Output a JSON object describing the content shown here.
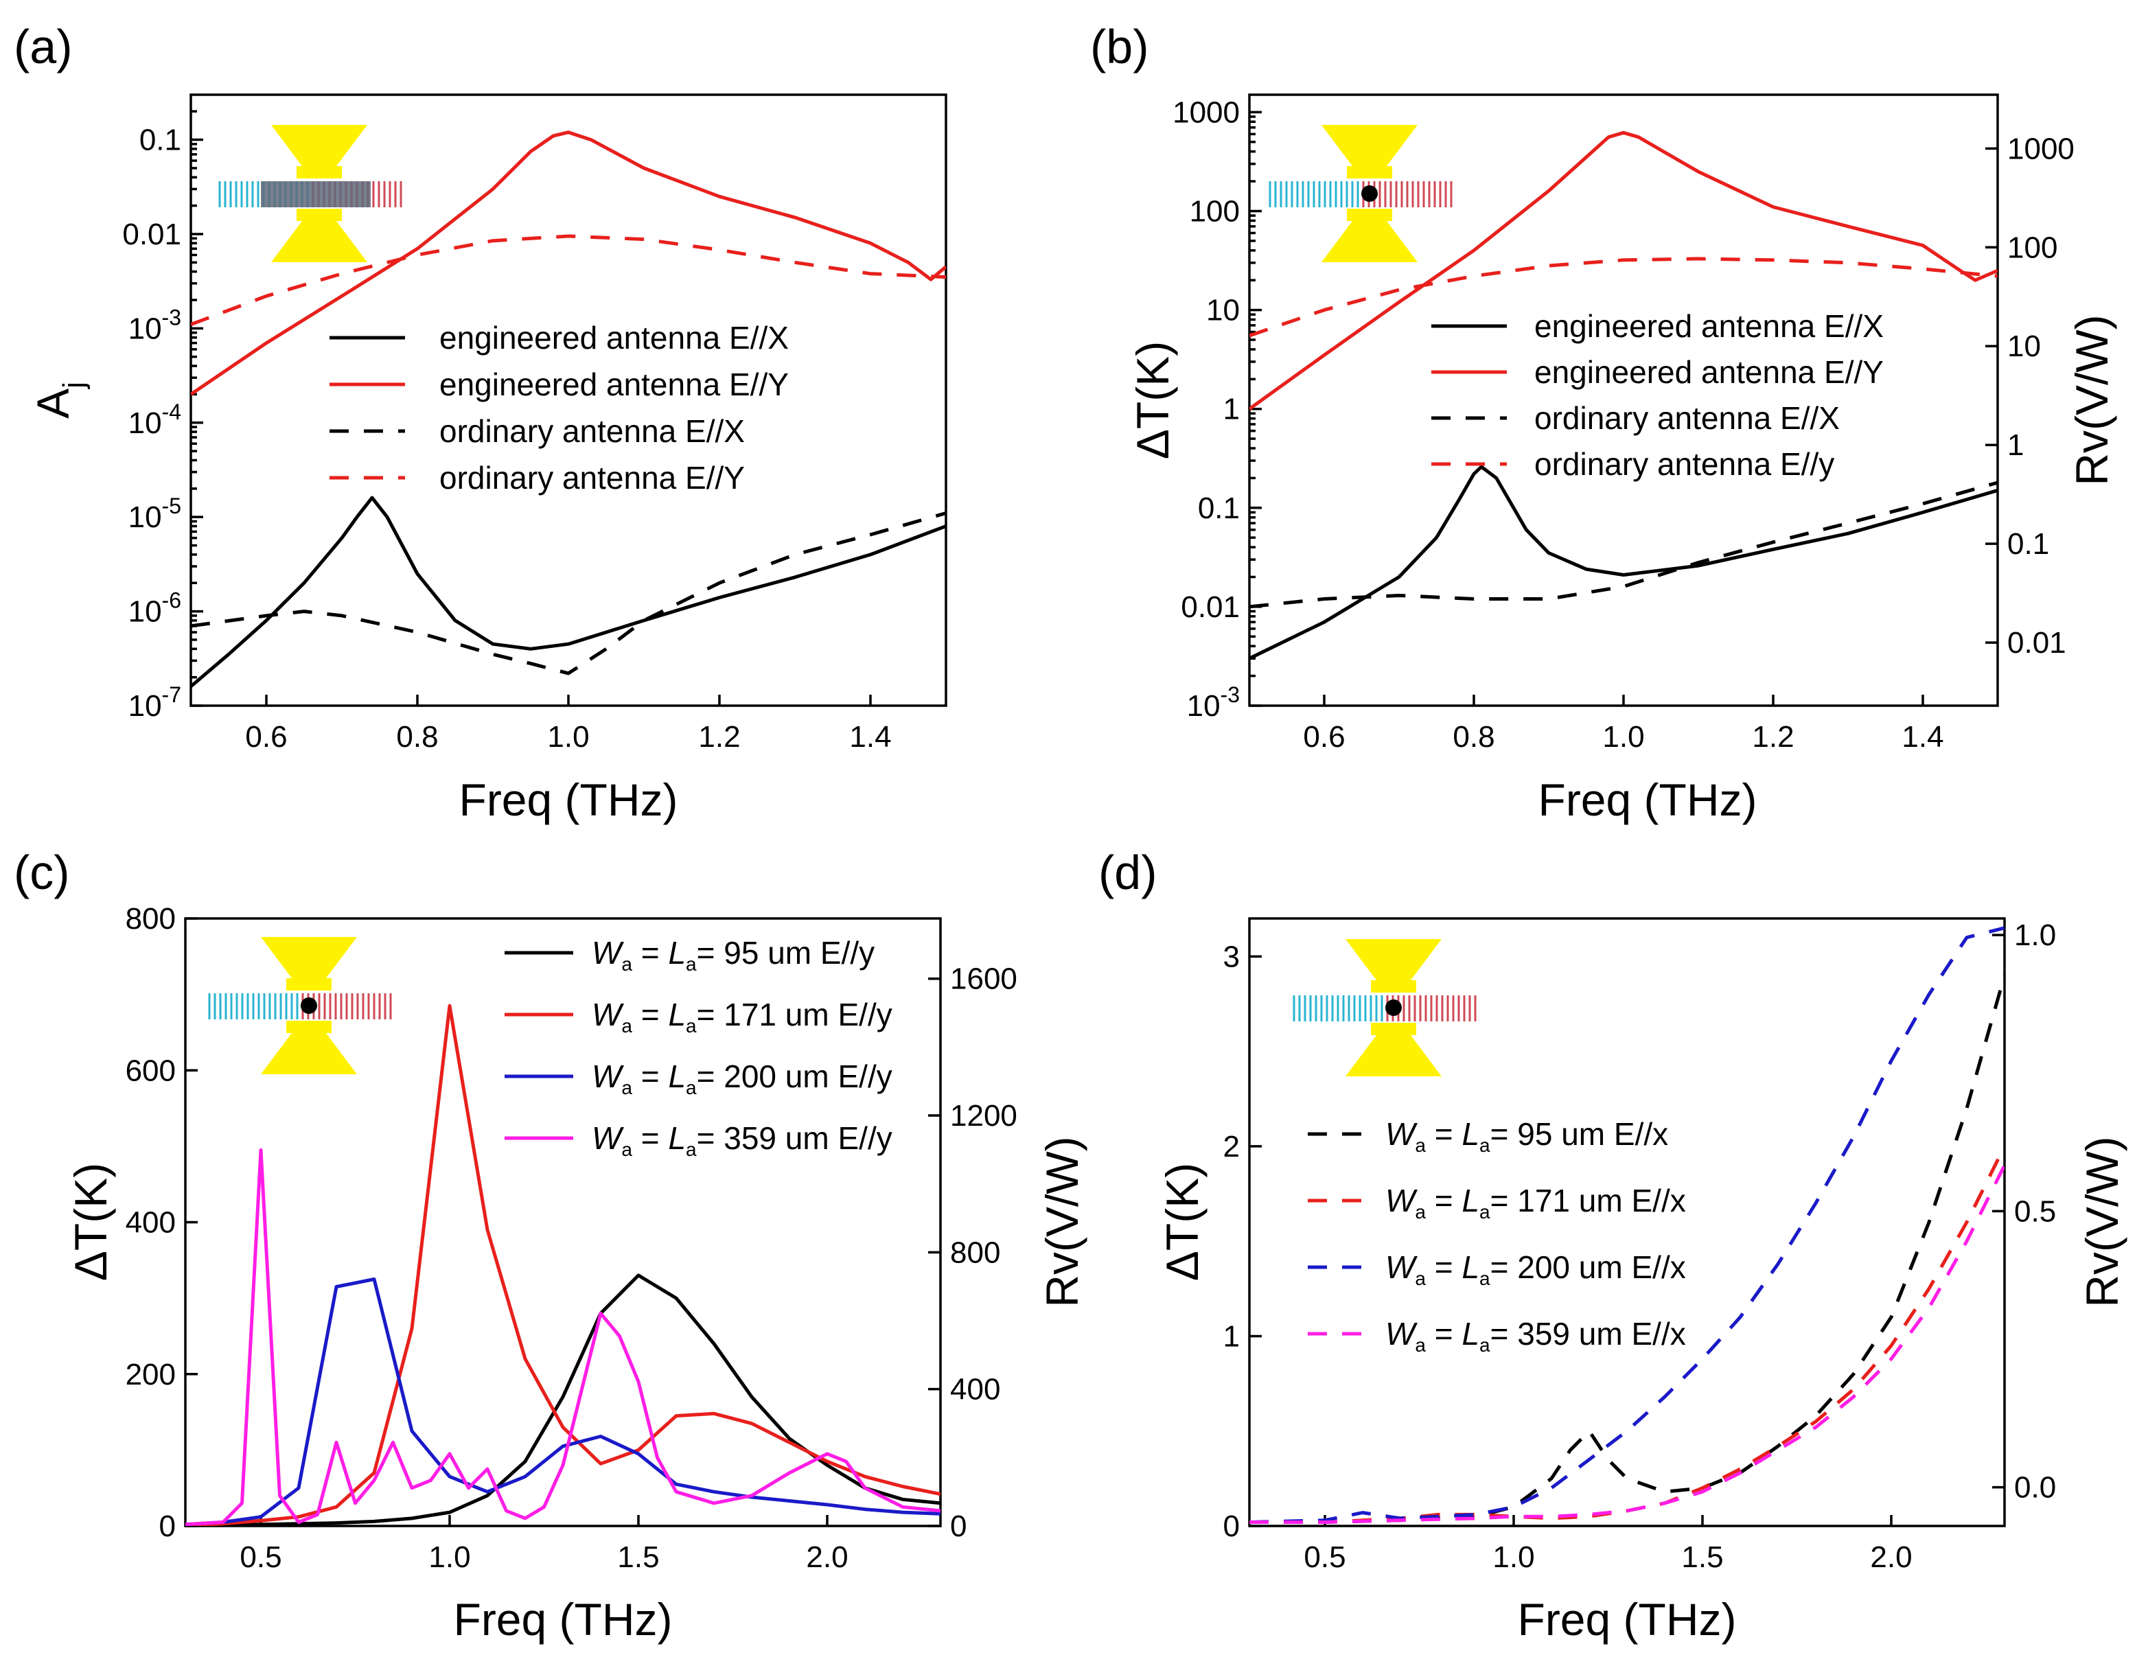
{
  "chart_data": [
    {
      "panel": "(a)",
      "type": "line",
      "yscale": "log",
      "xlabel": "Freq (THz)",
      "ylabel": "A",
      "ylabel_sub": "j",
      "xlim": [
        0.5,
        1.5
      ],
      "ylim": [
        1e-07,
        0.3
      ],
      "xticks": [
        0.6,
        0.8,
        1.0,
        1.2,
        1.4
      ],
      "xtick_labels": [
        "0.6",
        "0.8",
        "1.0",
        "1.2",
        "1.4"
      ],
      "yticks": [
        {
          "v": 0.1,
          "base": "0.1",
          "exp": ""
        },
        {
          "v": 0.01,
          "base": "0.01",
          "exp": ""
        },
        {
          "v": 0.001,
          "base": "10",
          "exp": "-3"
        },
        {
          "v": 0.0001,
          "base": "10",
          "exp": "-4"
        },
        {
          "v": 1e-05,
          "base": "10",
          "exp": "-5"
        },
        {
          "v": 1e-06,
          "base": "10",
          "exp": "-6"
        },
        {
          "v": 1e-07,
          "base": "10",
          "exp": "-7"
        }
      ],
      "legend_position": "center-right",
      "inset": "dot",
      "series": [
        {
          "name": "engineered antenna E//X",
          "color": "#000000",
          "dash": "solid",
          "x": [
            0.5,
            0.55,
            0.6,
            0.65,
            0.7,
            0.72,
            0.74,
            0.76,
            0.8,
            0.85,
            0.9,
            0.95,
            1.0,
            1.1,
            1.2,
            1.3,
            1.4,
            1.5
          ],
          "y": [
            1.6e-07,
            3.5e-07,
            8e-07,
            2e-06,
            6e-06,
            1e-05,
            1.6e-05,
            1e-05,
            2.5e-06,
            8e-07,
            4.5e-07,
            4e-07,
            4.5e-07,
            8e-07,
            1.4e-06,
            2.3e-06,
            4e-06,
            8e-06
          ]
        },
        {
          "name": "engineered antenna E//Y",
          "color": "#e8201c",
          "dash": "solid",
          "x": [
            0.5,
            0.6,
            0.7,
            0.8,
            0.9,
            0.95,
            0.98,
            1.0,
            1.03,
            1.1,
            1.2,
            1.3,
            1.4,
            1.45,
            1.48,
            1.5
          ],
          "y": [
            0.0002,
            0.0007,
            0.0022,
            0.007,
            0.03,
            0.075,
            0.11,
            0.12,
            0.1,
            0.05,
            0.025,
            0.015,
            0.008,
            0.005,
            0.0033,
            0.0045
          ]
        },
        {
          "name": "ordinary antenna E//X",
          "color": "#000000",
          "dash": "dash",
          "x": [
            0.5,
            0.6,
            0.65,
            0.7,
            0.8,
            0.9,
            0.95,
            1.0,
            1.05,
            1.1,
            1.2,
            1.3,
            1.4,
            1.5
          ],
          "y": [
            7e-07,
            9e-07,
            1e-06,
            9e-07,
            6e-07,
            3.5e-07,
            2.8e-07,
            2.2e-07,
            4e-07,
            8e-07,
            2e-06,
            4e-06,
            6.5e-06,
            1.1e-05
          ]
        },
        {
          "name": "ordinary antenna E//Y",
          "color": "#e8201c",
          "dash": "dash",
          "x": [
            0.5,
            0.6,
            0.7,
            0.8,
            0.9,
            1.0,
            1.1,
            1.2,
            1.3,
            1.4,
            1.5
          ],
          "y": [
            0.0011,
            0.0022,
            0.0038,
            0.006,
            0.0085,
            0.0095,
            0.0088,
            0.0068,
            0.005,
            0.0038,
            0.0035
          ]
        }
      ]
    },
    {
      "panel": "(b)",
      "type": "line",
      "yscale": "log",
      "xlabel": "Freq (THz)",
      "ylabel": "ΔT(K)",
      "ylabel_right": "Rv(V/W)",
      "xlim": [
        0.5,
        1.5
      ],
      "ylim": [
        0.001,
        1500
      ],
      "xticks": [
        0.6,
        0.8,
        1.0,
        1.2,
        1.4
      ],
      "xtick_labels": [
        "0.6",
        "0.8",
        "1.0",
        "1.2",
        "1.4"
      ],
      "yticks": [
        {
          "v": 1000,
          "base": "1000",
          "exp": ""
        },
        {
          "v": 100,
          "base": "100",
          "exp": ""
        },
        {
          "v": 10,
          "base": "10",
          "exp": ""
        },
        {
          "v": 1,
          "base": "1",
          "exp": ""
        },
        {
          "v": 0.1,
          "base": "0.1",
          "exp": ""
        },
        {
          "v": 0.01,
          "base": "0.01",
          "exp": ""
        },
        {
          "v": 0.001,
          "base": "10",
          "exp": "-3"
        }
      ],
      "right_yticks": [
        {
          "v": 1000,
          "label": "1000"
        },
        {
          "v": 100,
          "label": "100"
        },
        {
          "v": 10,
          "label": "10"
        },
        {
          "v": 1,
          "label": "1"
        },
        {
          "v": 0.1,
          "label": "0.1"
        },
        {
          "v": 0.01,
          "label": "0.01"
        }
      ],
      "right_ylim": [
        0.0023,
        3500
      ],
      "legend_position": "center-right",
      "inset": "dot",
      "series": [
        {
          "name": "engineered antenna E//X",
          "color": "#000000",
          "dash": "solid",
          "x": [
            0.5,
            0.6,
            0.7,
            0.75,
            0.78,
            0.8,
            0.81,
            0.83,
            0.87,
            0.9,
            0.95,
            1.0,
            1.1,
            1.2,
            1.3,
            1.4,
            1.5
          ],
          "y": [
            0.003,
            0.007,
            0.02,
            0.05,
            0.12,
            0.22,
            0.26,
            0.2,
            0.06,
            0.035,
            0.024,
            0.021,
            0.026,
            0.038,
            0.055,
            0.09,
            0.15
          ]
        },
        {
          "name": "engineered antenna E//Y",
          "color": "#e8201c",
          "dash": "solid",
          "x": [
            0.5,
            0.6,
            0.7,
            0.8,
            0.9,
            0.95,
            0.98,
            1.0,
            1.02,
            1.1,
            1.2,
            1.3,
            1.4,
            1.45,
            1.47,
            1.5
          ],
          "y": [
            1,
            3.5,
            12,
            40,
            160,
            350,
            560,
            620,
            560,
            250,
            110,
            70,
            45,
            25,
            20,
            25
          ]
        },
        {
          "name": "ordinary antenna E//X",
          "color": "#000000",
          "dash": "dash",
          "x": [
            0.5,
            0.6,
            0.7,
            0.8,
            0.9,
            1.0,
            1.1,
            1.2,
            1.3,
            1.4,
            1.5
          ],
          "y": [
            0.01,
            0.012,
            0.013,
            0.012,
            0.012,
            0.016,
            0.028,
            0.045,
            0.07,
            0.11,
            0.18
          ]
        },
        {
          "name": "ordinary antenna E//y",
          "color": "#e8201c",
          "dash": "dash",
          "x": [
            0.5,
            0.6,
            0.7,
            0.8,
            0.9,
            1.0,
            1.1,
            1.2,
            1.3,
            1.4,
            1.5
          ],
          "y": [
            5.5,
            10,
            16,
            22,
            28,
            32,
            33,
            32,
            30,
            26,
            22
          ]
        }
      ]
    },
    {
      "panel": "(c)",
      "type": "line",
      "yscale": "linear",
      "xlabel": "Freq (THz)",
      "ylabel": "ΔT(K)",
      "ylabel_right": "Rv(V/W)",
      "xlim": [
        0.3,
        2.3
      ],
      "ylim": [
        0,
        800
      ],
      "xticks": [
        0.5,
        1.0,
        1.5,
        2.0
      ],
      "xtick_labels": [
        "0.5",
        "1.0",
        "1.5",
        "2.0"
      ],
      "yticks": [
        {
          "v": 0,
          "base": "0",
          "exp": ""
        },
        {
          "v": 200,
          "base": "200",
          "exp": ""
        },
        {
          "v": 400,
          "base": "400",
          "exp": ""
        },
        {
          "v": 600,
          "base": "600",
          "exp": ""
        },
        {
          "v": 800,
          "base": "800",
          "exp": ""
        }
      ],
      "right_yticks": [
        {
          "v": 0,
          "label": "0"
        },
        {
          "v": 400,
          "label": "400"
        },
        {
          "v": 800,
          "label": "800"
        },
        {
          "v": 1200,
          "label": "1200"
        },
        {
          "v": 1600,
          "label": "1600"
        }
      ],
      "right_ylim": [
        0,
        1776
      ],
      "legend_position": "top-right",
      "inset": "dot",
      "legend_units": "um",
      "series": [
        {
          "name": "95 um E//y",
          "color": "#000000",
          "dash": "solid",
          "x": [
            0.3,
            0.4,
            0.5,
            0.6,
            0.7,
            0.8,
            0.9,
            1.0,
            1.1,
            1.2,
            1.3,
            1.4,
            1.5,
            1.6,
            1.7,
            1.8,
            1.9,
            2.0,
            2.1,
            2.2,
            2.3
          ],
          "y": [
            0,
            1,
            2,
            3,
            4,
            6,
            10,
            18,
            40,
            85,
            170,
            280,
            330,
            300,
            240,
            170,
            115,
            80,
            50,
            35,
            30
          ]
        },
        {
          "name": "171 um E//y",
          "color": "#e8201c",
          "dash": "solid",
          "x": [
            0.3,
            0.4,
            0.5,
            0.6,
            0.7,
            0.8,
            0.9,
            1.0,
            1.1,
            1.2,
            1.3,
            1.4,
            1.5,
            1.6,
            1.7,
            1.8,
            1.9,
            2.0,
            2.1,
            2.2,
            2.3
          ],
          "y": [
            0,
            3,
            7,
            12,
            25,
            70,
            260,
            685,
            390,
            220,
            130,
            82,
            100,
            145,
            148,
            135,
            110,
            85,
            65,
            52,
            42
          ]
        },
        {
          "name": "200 um E//y",
          "color": "#1a1ac8",
          "dash": "solid",
          "x": [
            0.3,
            0.4,
            0.5,
            0.6,
            0.7,
            0.8,
            0.9,
            1.0,
            1.1,
            1.2,
            1.3,
            1.4,
            1.5,
            1.6,
            1.7,
            1.8,
            1.9,
            2.0,
            2.1,
            2.2,
            2.3
          ],
          "y": [
            2,
            5,
            12,
            50,
            315,
            325,
            125,
            65,
            45,
            65,
            105,
            118,
            95,
            55,
            45,
            38,
            33,
            28,
            22,
            18,
            16
          ]
        },
        {
          "name": "359 um E//y",
          "color": "#ff1ee6",
          "dash": "solid",
          "x": [
            0.3,
            0.4,
            0.45,
            0.5,
            0.55,
            0.6,
            0.65,
            0.7,
            0.75,
            0.8,
            0.85,
            0.9,
            0.95,
            1.0,
            1.05,
            1.1,
            1.15,
            1.2,
            1.25,
            1.3,
            1.35,
            1.4,
            1.45,
            1.5,
            1.55,
            1.6,
            1.7,
            1.8,
            1.9,
            2.0,
            2.05,
            2.1,
            2.2,
            2.3
          ],
          "y": [
            2,
            5,
            30,
            495,
            40,
            5,
            15,
            110,
            30,
            60,
            110,
            50,
            60,
            95,
            50,
            75,
            20,
            10,
            25,
            80,
            180,
            280,
            250,
            190,
            90,
            45,
            30,
            40,
            70,
            95,
            85,
            50,
            25,
            20
          ]
        }
      ]
    },
    {
      "panel": "(d)",
      "type": "line",
      "yscale": "linear",
      "xlabel": "Freq (THz)",
      "ylabel": "ΔT(K)",
      "ylabel_right": "Rv(V/W)",
      "xlim": [
        0.3,
        2.3
      ],
      "ylim": [
        0,
        3.2
      ],
      "xticks": [
        0.5,
        1.0,
        1.5,
        2.0
      ],
      "xtick_labels": [
        "0.5",
        "1.0",
        "1.5",
        "2.0"
      ],
      "yticks": [
        {
          "v": 0,
          "base": "0",
          "exp": ""
        },
        {
          "v": 1,
          "base": "1",
          "exp": ""
        },
        {
          "v": 2,
          "base": "2",
          "exp": ""
        },
        {
          "v": 3,
          "base": "3",
          "exp": ""
        }
      ],
      "right_yticks": [
        {
          "v": 0.0,
          "label": "0.0"
        },
        {
          "v": 0.5,
          "label": "0.5"
        },
        {
          "v": 1.0,
          "label": "1.0"
        }
      ],
      "right_ylim": [
        -0.07,
        1.03
      ],
      "legend_position": "center-left",
      "inset": "dot",
      "legend_units": "um",
      "series": [
        {
          "name": "95 um E//x",
          "color": "#000000",
          "dash": "dash",
          "x": [
            0.3,
            0.5,
            0.7,
            0.9,
            1.0,
            1.1,
            1.15,
            1.2,
            1.25,
            1.3,
            1.4,
            1.5,
            1.6,
            1.7,
            1.8,
            1.9,
            2.0,
            2.1,
            2.2,
            2.3
          ],
          "y": [
            0.02,
            0.02,
            0.03,
            0.05,
            0.1,
            0.25,
            0.4,
            0.5,
            0.35,
            0.25,
            0.18,
            0.2,
            0.28,
            0.42,
            0.58,
            0.8,
            1.1,
            1.6,
            2.2,
            2.9
          ]
        },
        {
          "name": "171 um E//x",
          "color": "#e8201c",
          "dash": "dash",
          "x": [
            0.3,
            0.5,
            0.7,
            0.8,
            0.9,
            1.0,
            1.1,
            1.2,
            1.3,
            1.4,
            1.5,
            1.6,
            1.7,
            1.8,
            1.9,
            2.0,
            2.1,
            2.2,
            2.3
          ],
          "y": [
            0.02,
            0.02,
            0.04,
            0.06,
            0.06,
            0.05,
            0.04,
            0.05,
            0.08,
            0.12,
            0.2,
            0.3,
            0.42,
            0.55,
            0.72,
            0.95,
            1.25,
            1.6,
            2.0
          ]
        },
        {
          "name": "200 um E//x",
          "color": "#1a1ac8",
          "dash": "dash",
          "x": [
            0.3,
            0.5,
            0.6,
            0.7,
            0.8,
            0.9,
            1.0,
            1.1,
            1.2,
            1.3,
            1.4,
            1.5,
            1.6,
            1.7,
            1.8,
            1.9,
            2.0,
            2.1,
            2.2,
            2.3
          ],
          "y": [
            0.02,
            0.03,
            0.07,
            0.04,
            0.05,
            0.06,
            0.1,
            0.2,
            0.35,
            0.5,
            0.68,
            0.88,
            1.1,
            1.38,
            1.7,
            2.05,
            2.45,
            2.8,
            3.1,
            3.15
          ]
        },
        {
          "name": "359 um E//x",
          "color": "#ff1ee6",
          "dash": "dash",
          "x": [
            0.3,
            0.5,
            0.7,
            0.9,
            1.0,
            1.1,
            1.2,
            1.3,
            1.4,
            1.5,
            1.6,
            1.7,
            1.8,
            1.9,
            2.0,
            2.1,
            2.2,
            2.3
          ],
          "y": [
            0.02,
            0.02,
            0.03,
            0.04,
            0.05,
            0.05,
            0.06,
            0.08,
            0.12,
            0.18,
            0.28,
            0.4,
            0.52,
            0.68,
            0.88,
            1.15,
            1.5,
            1.9
          ]
        }
      ]
    }
  ],
  "legend_prefix": {
    "w": "W",
    "w_sub": "a",
    "eq": "=",
    "l": "L",
    "l_sub": "a"
  }
}
